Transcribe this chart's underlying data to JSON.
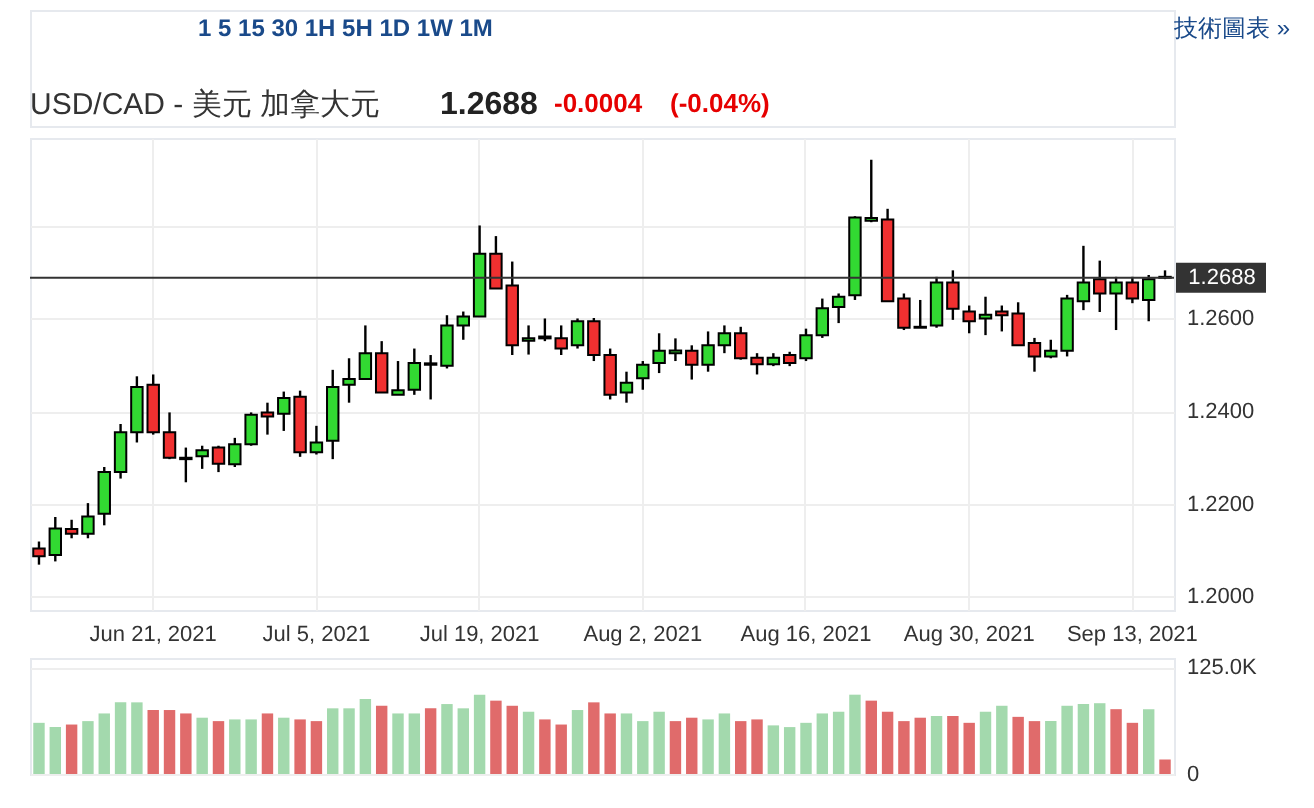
{
  "chart_data": [
    {
      "type": "candlestick",
      "title": "USD/CAD - 美元 加拿大元",
      "annotations": [
        "1 5 15 30 1H 5H 1D 1W 1M",
        "技術圖表 »",
        "1.2688",
        "-0.0004",
        "(-0.04%)"
      ],
      "categories": [
        null,
        null,
        null,
        null,
        null,
        null,
        null,
        "Jun 21, 2021",
        null,
        null,
        null,
        null,
        null,
        null,
        null,
        null,
        null,
        "Jul 5, 2021",
        null,
        null,
        null,
        null,
        null,
        null,
        null,
        null,
        null,
        "Jul 19, 2021",
        null,
        null,
        null,
        null,
        null,
        null,
        null,
        null,
        null,
        "Aug 2, 2021",
        null,
        null,
        null,
        null,
        null,
        null,
        null,
        null,
        null,
        "Aug 16, 2021",
        null,
        null,
        null,
        null,
        null,
        null,
        null,
        null,
        null,
        "Aug 30, 2021",
        null,
        null,
        null,
        null,
        null,
        null,
        null,
        null,
        null,
        "Sep 13, 2021",
        null,
        null
      ],
      "ohlc": [
        [
          1.2103,
          1.2118,
          1.2068,
          1.2086
        ],
        [
          1.2089,
          1.2171,
          1.2075,
          1.2146
        ],
        [
          1.2145,
          1.2165,
          1.2125,
          1.2135
        ],
        [
          1.2135,
          1.2201,
          1.2125,
          1.2172
        ],
        [
          1.2178,
          1.2279,
          1.2153,
          1.2268
        ],
        [
          1.2268,
          1.2372,
          1.2254,
          1.2354
        ],
        [
          1.2354,
          1.2475,
          1.2332,
          1.2452
        ],
        [
          1.2457,
          1.2479,
          1.2349,
          1.2354
        ],
        [
          1.2354,
          1.2397,
          1.2296,
          1.2299
        ],
        [
          1.2296,
          1.2321,
          1.2246,
          1.2299
        ],
        [
          1.2302,
          1.2325,
          1.2275,
          1.2315
        ],
        [
          1.2321,
          1.2325,
          1.2268,
          1.2286
        ],
        [
          1.2285,
          1.2342,
          1.2279,
          1.2328
        ],
        [
          1.2328,
          1.2397,
          1.2325,
          1.2392
        ],
        [
          1.2397,
          1.2418,
          1.2349,
          1.2388
        ],
        [
          1.2394,
          1.2442,
          1.2357,
          1.2428
        ],
        [
          1.2431,
          1.2444,
          1.2301,
          1.2311
        ],
        [
          1.2311,
          1.2368,
          1.2306,
          1.2332
        ],
        [
          1.2336,
          1.2489,
          1.2296,
          1.2452
        ],
        [
          1.2457,
          1.2514,
          1.2418,
          1.2469
        ],
        [
          1.2469,
          1.2585,
          1.2468,
          1.2525
        ],
        [
          1.2525,
          1.2551,
          1.2439,
          1.244
        ],
        [
          1.2435,
          1.2508,
          1.2435,
          1.2445
        ],
        [
          1.2446,
          1.2535,
          1.2435,
          1.2504
        ],
        [
          1.25,
          1.2521,
          1.2425,
          1.2503
        ],
        [
          1.2498,
          1.2607,
          1.2492,
          1.2585
        ],
        [
          1.2585,
          1.2615,
          1.2554,
          1.2604
        ],
        [
          1.2604,
          1.2801,
          1.2604,
          1.274
        ],
        [
          1.274,
          1.2778,
          1.2665,
          1.2665
        ],
        [
          1.2671,
          1.2723,
          1.2521,
          1.2542
        ],
        [
          1.2552,
          1.2585,
          1.2522,
          1.2557
        ],
        [
          1.2557,
          1.26,
          1.2551,
          1.2561
        ],
        [
          1.2557,
          1.2585,
          1.2521,
          1.2535
        ],
        [
          1.2542,
          1.26,
          1.2535,
          1.2594
        ],
        [
          1.2594,
          1.2601,
          1.2508,
          1.2521
        ],
        [
          1.2521,
          1.2535,
          1.2425,
          1.2435
        ],
        [
          1.244,
          1.2485,
          1.2418,
          1.2461
        ],
        [
          1.2471,
          1.2508,
          1.2446,
          1.25
        ],
        [
          1.2504,
          1.2568,
          1.2482,
          1.253
        ],
        [
          1.2525,
          1.2557,
          1.2508,
          1.2531
        ],
        [
          1.253,
          1.2542,
          1.2468,
          1.25
        ],
        [
          1.25,
          1.2572,
          1.2485,
          1.2542
        ],
        [
          1.2542,
          1.2585,
          1.2525,
          1.2568
        ],
        [
          1.2568,
          1.2582,
          1.2511,
          1.2514
        ],
        [
          1.2515,
          1.2525,
          1.2479,
          1.2501
        ],
        [
          1.2501,
          1.2525,
          1.2497,
          1.2515
        ],
        [
          1.2521,
          1.2528,
          1.2497,
          1.2504
        ],
        [
          1.2514,
          1.2578,
          1.2508,
          1.2564
        ],
        [
          1.2564,
          1.2643,
          1.2558,
          1.2622
        ],
        [
          1.2625,
          1.2654,
          1.259,
          1.2647
        ],
        [
          1.265,
          1.2821,
          1.264,
          1.2818
        ],
        [
          1.2811,
          1.2943,
          1.2808,
          1.2817
        ],
        [
          1.2814,
          1.2837,
          1.2637,
          1.2637
        ],
        [
          1.2643,
          1.2654,
          1.2575,
          1.258
        ],
        [
          1.2582,
          1.264,
          1.258,
          1.258
        ],
        [
          1.2585,
          1.269,
          1.258,
          1.2678
        ],
        [
          1.2678,
          1.2704,
          1.2597,
          1.2621
        ],
        [
          1.2615,
          1.2628,
          1.2568,
          1.2594
        ],
        [
          1.26,
          1.2647,
          1.2564,
          1.2608
        ],
        [
          1.2615,
          1.2628,
          1.2572,
          1.2607
        ],
        [
          1.2611,
          1.2635,
          1.2542,
          1.2542
        ],
        [
          1.2547,
          1.2558,
          1.2485,
          1.2518
        ],
        [
          1.2518,
          1.2554,
          1.2514,
          1.253
        ],
        [
          1.253,
          1.2651,
          1.2518,
          1.2643
        ],
        [
          1.2637,
          1.2757,
          1.2618,
          1.2678
        ],
        [
          1.2685,
          1.2725,
          1.2614,
          1.2654
        ],
        [
          1.2654,
          1.269,
          1.2575,
          1.2678
        ],
        [
          1.2678,
          1.269,
          1.2633,
          1.2643
        ],
        [
          1.264,
          1.2694,
          1.2594,
          1.2685
        ],
        [
          1.269,
          1.2704,
          1.2685,
          1.2688
        ]
      ],
      "colors": [
        "#f03030",
        "#32d932",
        "#f03030",
        "#32d932",
        "#32d932",
        "#32d932",
        "#32d932",
        "#f03030",
        "#f03030",
        "#32d932",
        "#32d932",
        "#f03030",
        "#32d932",
        "#32d932",
        "#f03030",
        "#32d932",
        "#f03030",
        "#32d932",
        "#32d932",
        "#32d932",
        "#32d932",
        "#f03030",
        "#32d932",
        "#32d932",
        "#32d932",
        "#32d932",
        "#32d932",
        "#32d932",
        "#f03030",
        "#f03030",
        "#32d932",
        "#32d932",
        "#f03030",
        "#32d932",
        "#f03030",
        "#f03030",
        "#32d932",
        "#32d932",
        "#32d932",
        "#32d932",
        "#f03030",
        "#32d932",
        "#32d932",
        "#f03030",
        "#f03030",
        "#32d932",
        "#f03030",
        "#32d932",
        "#32d932",
        "#32d932",
        "#32d932",
        "#32d932",
        "#f03030",
        "#f03030",
        "#f03030",
        "#32d932",
        "#f03030",
        "#f03030",
        "#32d932",
        "#f03030",
        "#f03030",
        "#f03030",
        "#32d932",
        "#32d932",
        "#32d932",
        "#f03030",
        "#32d932",
        "#f03030",
        "#32d932",
        "#f03030"
      ],
      "ylim": [
        1.197,
        1.299
      ],
      "yticks": [
        {
          "value": 1.2,
          "label": "1.2000"
        },
        {
          "value": 1.22,
          "label": "1.2200"
        },
        {
          "value": 1.24,
          "label": "1.2400"
        },
        {
          "value": 1.26,
          "label": "1.2600"
        },
        {
          "value": 1.28,
          "label": null
        }
      ],
      "ref_lines": [
        {
          "axis": "y",
          "value": 1.2688,
          "label": "1.2688",
          "color": "#333333"
        }
      ],
      "grid": true
    },
    {
      "type": "bar",
      "categories": [
        null,
        null,
        null,
        null,
        null,
        null,
        null,
        null,
        null,
        null,
        null,
        null,
        null,
        null,
        null,
        null,
        null,
        null,
        null,
        null,
        null,
        null,
        null,
        null,
        null,
        null,
        null,
        null,
        null,
        null,
        null,
        null,
        null,
        null,
        null,
        null,
        null,
        null,
        null,
        null,
        null,
        null,
        null,
        null,
        null,
        null,
        null,
        null,
        null,
        null,
        null,
        null,
        null,
        null,
        null,
        null,
        null,
        null,
        null,
        null,
        null,
        null,
        null,
        null,
        null,
        null,
        null,
        null,
        null,
        null
      ],
      "values": [
        60,
        55,
        58,
        62,
        71,
        84,
        84,
        75,
        75,
        71,
        66,
        62,
        64,
        64,
        71,
        66,
        64,
        62,
        77,
        77,
        88,
        80,
        71,
        71,
        77,
        82,
        77,
        93,
        86,
        80,
        73,
        64,
        58,
        75,
        84,
        71,
        71,
        62,
        73,
        62,
        66,
        64,
        71,
        62,
        64,
        57,
        55,
        60,
        71,
        73,
        93,
        86,
        73,
        62,
        66,
        68,
        68,
        60,
        73,
        80,
        67,
        62,
        62,
        80,
        82,
        83,
        76,
        60,
        76,
        17
      ],
      "colors": [
        "#a3d9ad",
        "#a3d9ad",
        "#e06b6b",
        "#a3d9ad",
        "#a3d9ad",
        "#a3d9ad",
        "#a3d9ad",
        "#e06b6b",
        "#e06b6b",
        "#e06b6b",
        "#a3d9ad",
        "#e06b6b",
        "#a3d9ad",
        "#a3d9ad",
        "#e06b6b",
        "#a3d9ad",
        "#e06b6b",
        "#e06b6b",
        "#a3d9ad",
        "#a3d9ad",
        "#a3d9ad",
        "#e06b6b",
        "#a3d9ad",
        "#a3d9ad",
        "#e06b6b",
        "#a3d9ad",
        "#a3d9ad",
        "#a3d9ad",
        "#e06b6b",
        "#e06b6b",
        "#a3d9ad",
        "#e06b6b",
        "#e06b6b",
        "#a3d9ad",
        "#e06b6b",
        "#e06b6b",
        "#a3d9ad",
        "#a3d9ad",
        "#a3d9ad",
        "#e06b6b",
        "#e06b6b",
        "#a3d9ad",
        "#a3d9ad",
        "#e06b6b",
        "#e06b6b",
        "#a3d9ad",
        "#a3d9ad",
        "#a3d9ad",
        "#a3d9ad",
        "#a3d9ad",
        "#a3d9ad",
        "#e06b6b",
        "#e06b6b",
        "#e06b6b",
        "#e06b6b",
        "#a3d9ad",
        "#e06b6b",
        "#e06b6b",
        "#a3d9ad",
        "#a3d9ad",
        "#e06b6b",
        "#e06b6b",
        "#a3d9ad",
        "#a3d9ad",
        "#a3d9ad",
        "#a3d9ad",
        "#e06b6b",
        "#e06b6b",
        "#a3d9ad",
        "#e06b6b"
      ],
      "ylim": [
        0,
        136
      ],
      "yticks": [
        {
          "value": 0,
          "label": "0"
        },
        {
          "value": 125,
          "label": "125.0K"
        }
      ],
      "tick_labels": "y",
      "grid": true
    }
  ]
}
